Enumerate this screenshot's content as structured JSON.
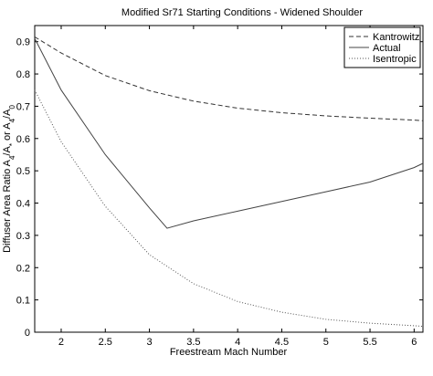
{
  "chart_data": {
    "type": "line",
    "title": "Modified Sr71 Starting Conditions - Widened Shoulder",
    "xlabel": "Freestream Mach Number",
    "ylabel": {
      "prefix": "Diffuser Area Ratio  A",
      "sub1": "4",
      "mid1": "/A",
      "sub2": "*",
      "mid2": " or A",
      "sub3": "4",
      "mid3": "/A",
      "sub4": "0"
    },
    "xlim": [
      1.7,
      6.1
    ],
    "ylim": [
      0,
      0.95
    ],
    "xticks": [
      2,
      2.5,
      3,
      3.5,
      4,
      4.5,
      5,
      5.5,
      6
    ],
    "xtick_labels": [
      "2",
      "2.5",
      "3",
      "3.5",
      "4",
      "4.5",
      "5",
      "5.5",
      "6"
    ],
    "yticks": [
      0,
      0.1,
      0.2,
      0.3,
      0.4,
      0.5,
      0.6,
      0.7,
      0.8,
      0.9
    ],
    "ytick_labels": [
      "0",
      "0.1",
      "0.2",
      "0.3",
      "0.4",
      "0.5",
      "0.6",
      "0.7",
      "0.8",
      "0.9"
    ],
    "grid": false,
    "legend_position": "top-right",
    "series": [
      {
        "name": "Kantrowitz",
        "style": "dashed",
        "color": "#333333",
        "x": [
          1.7,
          2.0,
          2.5,
          3.0,
          3.5,
          4.0,
          4.5,
          5.0,
          5.5,
          6.0,
          6.1
        ],
        "y": [
          0.915,
          0.865,
          0.795,
          0.748,
          0.716,
          0.694,
          0.68,
          0.67,
          0.663,
          0.657,
          0.655
        ]
      },
      {
        "name": "Actual",
        "style": "solid",
        "color": "#444444",
        "x": [
          1.7,
          2.0,
          2.5,
          3.0,
          3.2,
          3.5,
          4.0,
          4.5,
          5.0,
          5.5,
          6.0,
          6.1
        ],
        "y": [
          0.91,
          0.75,
          0.55,
          0.385,
          0.322,
          0.345,
          0.375,
          0.405,
          0.435,
          0.465,
          0.51,
          0.523
        ]
      },
      {
        "name": "Isentropic",
        "style": "dotted",
        "color": "#555555",
        "x": [
          1.7,
          2.0,
          2.5,
          3.0,
          3.5,
          4.0,
          4.5,
          5.0,
          5.5,
          6.0,
          6.1
        ],
        "y": [
          0.75,
          0.59,
          0.39,
          0.24,
          0.15,
          0.095,
          0.062,
          0.04,
          0.028,
          0.02,
          0.018
        ]
      }
    ]
  }
}
